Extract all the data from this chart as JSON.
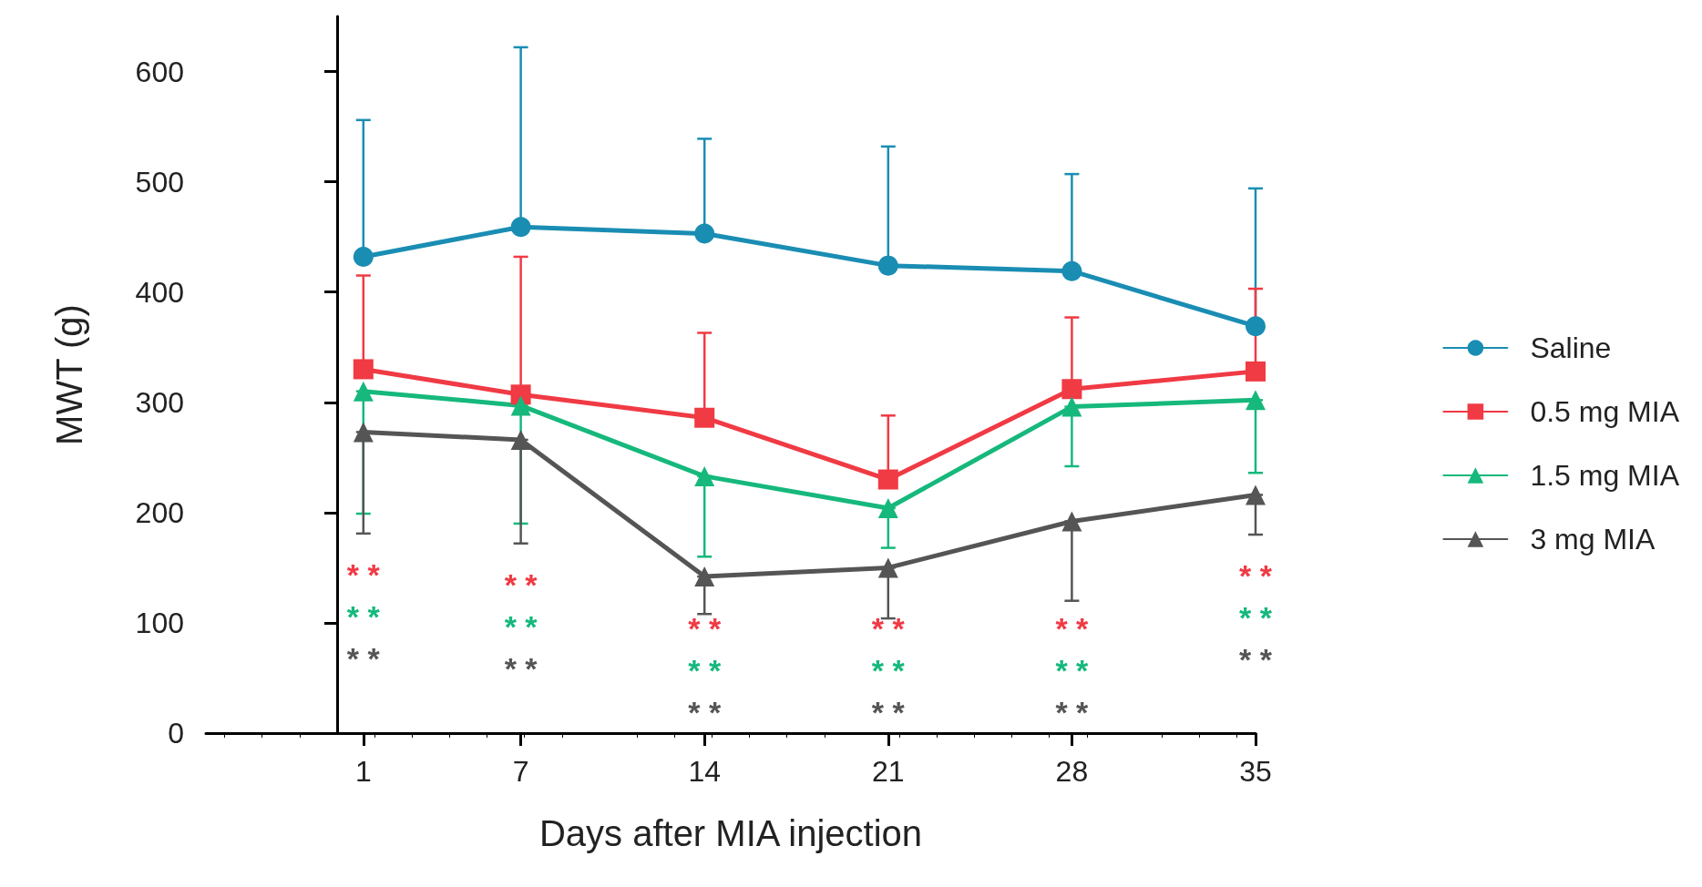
{
  "chart_data": {
    "type": "line",
    "xlabel": "Days after MIA injection",
    "ylabel": "MWT (g)",
    "x": [
      1,
      7,
      14,
      21,
      28,
      35
    ],
    "xlim": [
      -5,
      35
    ],
    "xticks": [
      1,
      7,
      14,
      21,
      28,
      35
    ],
    "ylim": [
      0,
      650
    ],
    "yticks": [
      0,
      100,
      200,
      300,
      400,
      500,
      600
    ],
    "grid": false,
    "legend": "right",
    "line_style": "solid",
    "series": [
      {
        "name": "Saline",
        "color": "#1a8db3",
        "marker": "circle",
        "values": [
          432,
          459,
          453,
          424,
          419,
          369
        ],
        "errors": [
          [
            432,
            556
          ],
          [
            459,
            622
          ],
          [
            453,
            539
          ],
          [
            424,
            532
          ],
          [
            419,
            507
          ],
          [
            369,
            494
          ]
        ]
      },
      {
        "name": "0.5 mg MIA",
        "color": "#f03a44",
        "marker": "square",
        "values": [
          330,
          307,
          286,
          230,
          312,
          328
        ],
        "errors": [
          [
            330,
            415
          ],
          [
            307,
            432
          ],
          [
            286,
            363
          ],
          [
            230,
            288
          ],
          [
            312,
            377
          ],
          [
            328,
            403
          ]
        ]
      },
      {
        "name": "1.5 mg MIA",
        "color": "#16b87c",
        "marker": "triangle",
        "values": [
          310,
          297,
          233,
          204,
          296,
          302
        ],
        "errors": [
          [
            199,
            310
          ],
          [
            190,
            297
          ],
          [
            160,
            233
          ],
          [
            168,
            204
          ],
          [
            242,
            296
          ],
          [
            236,
            302
          ]
        ]
      },
      {
        "name": "3 mg MIA",
        "color": "#555555",
        "marker": "triangle",
        "values": [
          273,
          266,
          142,
          150,
          192,
          216
        ],
        "errors": [
          [
            181,
            273
          ],
          [
            172,
            266
          ],
          [
            108,
            142
          ],
          [
            104,
            150
          ],
          [
            120,
            192
          ],
          [
            180,
            216
          ]
        ]
      }
    ],
    "annotations": [
      "* *",
      "* *",
      "* *",
      "* *",
      "* *",
      "* *",
      "* *",
      "* *",
      "* *",
      "* *",
      "* *",
      "* *",
      "* *",
      "* *",
      "* *",
      "* *",
      "* *",
      "* *"
    ]
  }
}
